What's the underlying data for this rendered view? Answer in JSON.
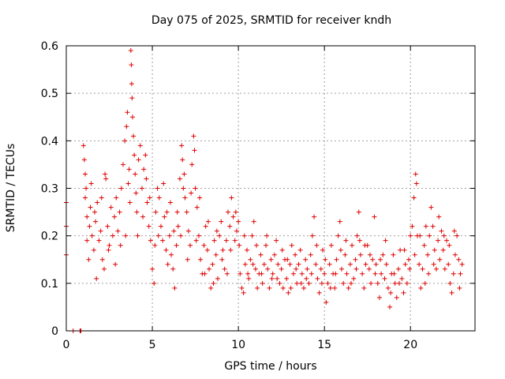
{
  "chart_data": {
    "type": "scatter",
    "title": "Day 075 of 2025, SRMTID for receiver kndh",
    "xlabel": "GPS time / hours",
    "ylabel": "SRMTID / TECUs",
    "xlim": [
      0,
      23.75
    ],
    "ylim": [
      0,
      0.6
    ],
    "xticks": [
      0,
      5,
      10,
      15,
      20
    ],
    "yticks": [
      0,
      0.1,
      0.2,
      0.3,
      0.4,
      0.5,
      0.6
    ],
    "ytick_labels": [
      "0",
      "0.1",
      "0.2",
      "0.3",
      "0.4",
      "0.5",
      "0.6"
    ],
    "grid": true,
    "marker": "+",
    "color": "#e00000",
    "series": [
      {
        "name": "SRMTID",
        "points": [
          [
            0.0,
            0.27
          ],
          [
            0.0,
            0.22
          ],
          [
            0.0,
            0.16
          ],
          [
            0.4,
            0.0
          ],
          [
            0.8,
            0.0
          ],
          [
            0.85,
            0.0
          ],
          [
            1.0,
            0.39
          ],
          [
            1.05,
            0.36
          ],
          [
            1.1,
            0.33
          ],
          [
            1.1,
            0.28
          ],
          [
            1.2,
            0.24
          ],
          [
            1.2,
            0.19
          ],
          [
            1.3,
            0.15
          ],
          [
            1.35,
            0.22
          ],
          [
            1.4,
            0.26
          ],
          [
            1.5,
            0.2
          ],
          [
            1.6,
            0.17
          ],
          [
            1.7,
            0.23
          ],
          [
            1.75,
            0.11
          ],
          [
            1.8,
            0.27
          ],
          [
            1.9,
            0.19
          ],
          [
            2.0,
            0.21
          ],
          [
            2.1,
            0.15
          ],
          [
            2.2,
            0.13
          ],
          [
            2.25,
            0.33
          ],
          [
            2.3,
            0.32
          ],
          [
            2.4,
            0.22
          ],
          [
            2.5,
            0.18
          ],
          [
            2.6,
            0.26
          ],
          [
            2.7,
            0.2
          ],
          [
            2.8,
            0.24
          ],
          [
            2.9,
            0.28
          ],
          [
            3.0,
            0.21
          ],
          [
            3.1,
            0.25
          ],
          [
            3.2,
            0.3
          ],
          [
            3.3,
            0.35
          ],
          [
            3.4,
            0.4
          ],
          [
            3.5,
            0.43
          ],
          [
            3.55,
            0.46
          ],
          [
            3.6,
            0.31
          ],
          [
            3.7,
            0.27
          ],
          [
            3.75,
            0.59
          ],
          [
            3.78,
            0.56
          ],
          [
            3.8,
            0.52
          ],
          [
            3.82,
            0.49
          ],
          [
            3.85,
            0.45
          ],
          [
            3.9,
            0.41
          ],
          [
            3.95,
            0.37
          ],
          [
            4.0,
            0.33
          ],
          [
            4.05,
            0.29
          ],
          [
            4.1,
            0.25
          ],
          [
            4.2,
            0.36
          ],
          [
            4.3,
            0.39
          ],
          [
            4.4,
            0.3
          ],
          [
            4.5,
            0.34
          ],
          [
            4.6,
            0.37
          ],
          [
            4.7,
            0.27
          ],
          [
            4.8,
            0.22
          ],
          [
            4.9,
            0.19
          ],
          [
            5.0,
            0.13
          ],
          [
            5.1,
            0.1
          ],
          [
            5.2,
            0.25
          ],
          [
            5.3,
            0.3
          ],
          [
            5.4,
            0.28
          ],
          [
            5.5,
            0.22
          ],
          [
            5.6,
            0.19
          ],
          [
            5.7,
            0.24
          ],
          [
            5.8,
            0.17
          ],
          [
            5.9,
            0.14
          ],
          [
            6.0,
            0.2
          ],
          [
            6.1,
            0.16
          ],
          [
            6.2,
            0.13
          ],
          [
            6.3,
            0.09
          ],
          [
            6.4,
            0.18
          ],
          [
            6.5,
            0.22
          ],
          [
            6.6,
            0.32
          ],
          [
            6.7,
            0.39
          ],
          [
            6.75,
            0.36
          ],
          [
            6.8,
            0.3
          ],
          [
            6.9,
            0.28
          ],
          [
            7.0,
            0.25
          ],
          [
            7.1,
            0.21
          ],
          [
            7.2,
            0.18
          ],
          [
            7.3,
            0.35
          ],
          [
            7.4,
            0.41
          ],
          [
            7.45,
            0.38
          ],
          [
            7.5,
            0.3
          ],
          [
            7.6,
            0.26
          ],
          [
            7.7,
            0.2
          ],
          [
            7.8,
            0.15
          ],
          [
            7.9,
            0.12
          ],
          [
            8.0,
            0.18
          ],
          [
            8.1,
            0.22
          ],
          [
            8.2,
            0.17
          ],
          [
            8.3,
            0.13
          ],
          [
            8.4,
            0.09
          ],
          [
            8.5,
            0.14
          ],
          [
            8.6,
            0.19
          ],
          [
            8.7,
            0.16
          ],
          [
            8.8,
            0.11
          ],
          [
            8.9,
            0.2
          ],
          [
            9.0,
            0.23
          ],
          [
            9.1,
            0.17
          ],
          [
            9.2,
            0.13
          ],
          [
            9.3,
            0.19
          ],
          [
            9.4,
            0.25
          ],
          [
            9.5,
            0.22
          ],
          [
            9.6,
            0.28
          ],
          [
            9.7,
            0.24
          ],
          [
            9.8,
            0.19
          ],
          [
            9.9,
            0.21
          ],
          [
            10.0,
            0.23
          ],
          [
            10.1,
            0.12
          ],
          [
            10.2,
            0.09
          ],
          [
            10.3,
            0.08
          ],
          [
            10.4,
            0.14
          ],
          [
            10.5,
            0.17
          ],
          [
            10.6,
            0.11
          ],
          [
            10.7,
            0.15
          ],
          [
            10.8,
            0.2
          ],
          [
            10.9,
            0.23
          ],
          [
            11.0,
            0.13
          ],
          [
            11.1,
            0.09
          ],
          [
            11.2,
            0.12
          ],
          [
            11.3,
            0.16
          ],
          [
            11.4,
            0.1
          ],
          [
            11.5,
            0.14
          ],
          [
            11.6,
            0.18
          ],
          [
            11.7,
            0.13
          ],
          [
            11.8,
            0.09
          ],
          [
            11.9,
            0.15
          ],
          [
            12.0,
            0.12
          ],
          [
            12.1,
            0.16
          ],
          [
            12.2,
            0.19
          ],
          [
            12.3,
            0.14
          ],
          [
            12.4,
            0.1
          ],
          [
            12.5,
            0.13
          ],
          [
            12.6,
            0.09
          ],
          [
            12.7,
            0.15
          ],
          [
            12.8,
            0.11
          ],
          [
            12.9,
            0.08
          ],
          [
            13.0,
            0.14
          ],
          [
            13.1,
            0.18
          ],
          [
            13.2,
            0.12
          ],
          [
            13.3,
            0.16
          ],
          [
            13.4,
            0.1
          ],
          [
            13.5,
            0.14
          ],
          [
            13.6,
            0.17
          ],
          [
            13.7,
            0.12
          ],
          [
            13.8,
            0.09
          ],
          [
            13.9,
            0.15
          ],
          [
            14.0,
            0.13
          ],
          [
            14.1,
            0.1
          ],
          [
            14.2,
            0.16
          ],
          [
            14.3,
            0.2
          ],
          [
            14.4,
            0.24
          ],
          [
            14.5,
            0.14
          ],
          [
            14.6,
            0.11
          ],
          [
            14.7,
            0.08
          ],
          [
            14.8,
            0.13
          ],
          [
            14.9,
            0.17
          ],
          [
            15.0,
            0.12
          ],
          [
            15.1,
            0.06
          ],
          [
            15.2,
            0.1
          ],
          [
            15.3,
            0.14
          ],
          [
            15.4,
            0.18
          ],
          [
            15.5,
            0.12
          ],
          [
            15.6,
            0.09
          ],
          [
            15.7,
            0.15
          ],
          [
            15.8,
            0.2
          ],
          [
            15.9,
            0.23
          ],
          [
            16.0,
            0.13
          ],
          [
            16.1,
            0.1
          ],
          [
            16.2,
            0.16
          ],
          [
            16.3,
            0.12
          ],
          [
            16.4,
            0.09
          ],
          [
            16.5,
            0.14
          ],
          [
            16.6,
            0.18
          ],
          [
            16.7,
            0.11
          ],
          [
            16.8,
            0.15
          ],
          [
            16.9,
            0.2
          ],
          [
            17.0,
            0.25
          ],
          [
            17.1,
            0.16
          ],
          [
            17.2,
            0.12
          ],
          [
            17.3,
            0.09
          ],
          [
            17.4,
            0.14
          ],
          [
            17.5,
            0.18
          ],
          [
            17.6,
            0.13
          ],
          [
            17.7,
            0.1
          ],
          [
            17.8,
            0.15
          ],
          [
            17.9,
            0.24
          ],
          [
            18.0,
            0.14
          ],
          [
            18.1,
            0.1
          ],
          [
            18.2,
            0.07
          ],
          [
            18.3,
            0.12
          ],
          [
            18.4,
            0.16
          ],
          [
            18.5,
            0.11
          ],
          [
            18.6,
            0.14
          ],
          [
            18.7,
            0.09
          ],
          [
            18.8,
            0.05
          ],
          [
            18.9,
            0.12
          ],
          [
            19.0,
            0.16
          ],
          [
            19.1,
            0.1
          ],
          [
            19.2,
            0.07
          ],
          [
            19.3,
            0.13
          ],
          [
            19.4,
            0.17
          ],
          [
            19.5,
            0.11
          ],
          [
            19.6,
            0.08
          ],
          [
            19.7,
            0.14
          ],
          [
            19.8,
            0.1
          ],
          [
            19.9,
            0.15
          ],
          [
            20.0,
            0.2
          ],
          [
            20.1,
            0.22
          ],
          [
            20.2,
            0.28
          ],
          [
            20.3,
            0.33
          ],
          [
            20.35,
            0.31
          ],
          [
            20.4,
            0.2
          ],
          [
            20.5,
            0.14
          ],
          [
            20.6,
            0.09
          ],
          [
            20.7,
            0.13
          ],
          [
            20.8,
            0.18
          ],
          [
            20.9,
            0.22
          ],
          [
            21.0,
            0.16
          ],
          [
            21.1,
            0.2
          ],
          [
            21.2,
            0.26
          ],
          [
            21.3,
            0.22
          ],
          [
            21.4,
            0.17
          ],
          [
            21.5,
            0.13
          ],
          [
            21.6,
            0.19
          ],
          [
            21.7,
            0.15
          ],
          [
            21.8,
            0.21
          ],
          [
            21.9,
            0.17
          ],
          [
            22.0,
            0.13
          ],
          [
            22.1,
            0.19
          ],
          [
            22.2,
            0.14
          ],
          [
            22.3,
            0.1
          ],
          [
            22.4,
            0.08
          ],
          [
            22.5,
            0.12
          ],
          [
            22.6,
            0.16
          ],
          [
            22.7,
            0.2
          ],
          [
            22.8,
            0.15
          ],
          [
            22.9,
            0.12
          ],
          [
            23.0,
            0.14
          ],
          [
            1.15,
            0.3
          ],
          [
            1.45,
            0.31
          ],
          [
            1.65,
            0.25
          ],
          [
            2.05,
            0.28
          ],
          [
            2.45,
            0.17
          ],
          [
            2.85,
            0.14
          ],
          [
            3.15,
            0.18
          ],
          [
            3.45,
            0.2
          ],
          [
            3.65,
            0.34
          ],
          [
            4.15,
            0.2
          ],
          [
            4.45,
            0.24
          ],
          [
            4.65,
            0.32
          ],
          [
            4.85,
            0.28
          ],
          [
            5.15,
            0.18
          ],
          [
            5.35,
            0.2
          ],
          [
            5.65,
            0.31
          ],
          [
            5.85,
            0.25
          ],
          [
            6.05,
            0.27
          ],
          [
            6.25,
            0.21
          ],
          [
            6.45,
            0.25
          ],
          [
            6.65,
            0.2
          ],
          [
            6.85,
            0.33
          ],
          [
            7.05,
            0.15
          ],
          [
            7.25,
            0.29
          ],
          [
            7.55,
            0.19
          ],
          [
            7.75,
            0.28
          ],
          [
            8.05,
            0.12
          ],
          [
            8.25,
            0.23
          ],
          [
            8.55,
            0.1
          ],
          [
            8.75,
            0.21
          ],
          [
            9.05,
            0.15
          ],
          [
            9.35,
            0.12
          ],
          [
            9.55,
            0.17
          ],
          [
            9.85,
            0.25
          ],
          [
            10.05,
            0.18
          ],
          [
            10.35,
            0.2
          ],
          [
            10.55,
            0.12
          ],
          [
            10.85,
            0.14
          ],
          [
            11.05,
            0.18
          ],
          [
            11.35,
            0.12
          ],
          [
            11.65,
            0.2
          ],
          [
            11.95,
            0.11
          ],
          [
            12.25,
            0.11
          ],
          [
            12.55,
            0.17
          ],
          [
            12.85,
            0.15
          ],
          [
            13.05,
            0.09
          ],
          [
            13.35,
            0.13
          ],
          [
            13.65,
            0.1
          ],
          [
            13.95,
            0.11
          ],
          [
            14.25,
            0.12
          ],
          [
            14.55,
            0.18
          ],
          [
            14.85,
            0.1
          ],
          [
            15.05,
            0.15
          ],
          [
            15.35,
            0.09
          ],
          [
            15.65,
            0.12
          ],
          [
            15.95,
            0.17
          ],
          [
            16.25,
            0.19
          ],
          [
            16.55,
            0.1
          ],
          [
            16.85,
            0.13
          ],
          [
            17.05,
            0.19
          ],
          [
            17.35,
            0.18
          ],
          [
            17.65,
            0.16
          ],
          [
            17.95,
            0.12
          ],
          [
            18.25,
            0.15
          ],
          [
            18.55,
            0.19
          ],
          [
            18.85,
            0.08
          ],
          [
            19.05,
            0.12
          ],
          [
            19.35,
            0.1
          ],
          [
            19.65,
            0.17
          ],
          [
            19.95,
            0.13
          ],
          [
            20.25,
            0.16
          ],
          [
            20.55,
            0.2
          ],
          [
            20.85,
            0.1
          ],
          [
            21.05,
            0.12
          ],
          [
            21.35,
            0.14
          ],
          [
            21.65,
            0.24
          ],
          [
            21.95,
            0.2
          ],
          [
            22.25,
            0.18
          ],
          [
            22.55,
            0.21
          ],
          [
            22.85,
            0.09
          ]
        ]
      }
    ]
  }
}
